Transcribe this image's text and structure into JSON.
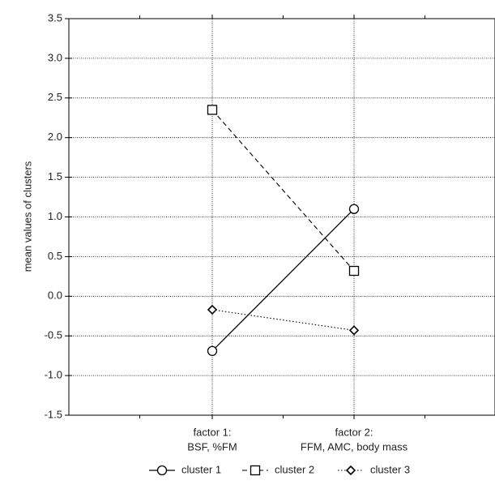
{
  "chart_data": {
    "type": "line",
    "title": "",
    "ylabel": "mean values of clusters",
    "xlabel": "",
    "categories": [
      [
        "factor 1:",
        "BSF, %FM"
      ],
      [
        "factor 2:",
        "FFM, AMC, body mass"
      ]
    ],
    "ylim": [
      -1.5,
      3.5
    ],
    "yticks": [
      3.5,
      3.0,
      2.5,
      2.0,
      1.5,
      1.0,
      0.5,
      0.0,
      -0.5,
      -1.0,
      -1.5
    ],
    "ytick_labels": [
      "3.5",
      "3.0",
      "2.5",
      "2.0",
      "1.5",
      "1.0",
      "0.5",
      "0.0",
      "-0.5",
      "-1.0",
      "-1.5"
    ],
    "grid": true,
    "legend_position": "bottom",
    "series": [
      {
        "name": "cluster 1",
        "values": [
          -0.69,
          1.1
        ],
        "marker": "circle",
        "line_style": "solid"
      },
      {
        "name": "cluster 2",
        "values": [
          2.35,
          0.32
        ],
        "marker": "square",
        "line_style": "dashed"
      },
      {
        "name": "cluster 3",
        "values": [
          -0.17,
          -0.43
        ],
        "marker": "diamond",
        "line_style": "dotted"
      }
    ],
    "colors": {
      "line": "#000000",
      "grid": "#000000",
      "marker_fill": "#ffffff"
    }
  }
}
